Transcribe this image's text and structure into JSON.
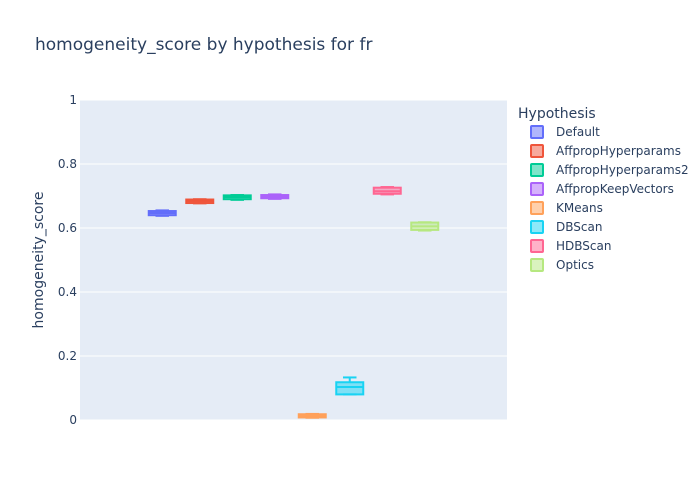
{
  "chart_data": {
    "type": "box",
    "title": "homogeneity_score by hypothesis for fr",
    "ylabel": "homogeneity_score",
    "xlabel": "",
    "ylim": [
      0,
      1
    ],
    "yticks": [
      {
        "value": 0,
        "label": "0"
      },
      {
        "value": 0.2,
        "label": "0.2"
      },
      {
        "value": 0.4,
        "label": "0.4"
      },
      {
        "value": 0.6,
        "label": "0.6"
      },
      {
        "value": 0.8,
        "label": "0.8"
      },
      {
        "value": 1,
        "label": "1"
      }
    ],
    "grid": true,
    "legend": {
      "title": "Hypothesis",
      "placement": "right"
    },
    "series": [
      {
        "name": "Default",
        "color": "#636efa",
        "min": 0.638,
        "q1": 0.64,
        "median": 0.647,
        "q3": 0.653,
        "max": 0.655
      },
      {
        "name": "AffpropHyperparams",
        "color": "#EF553B",
        "min": 0.677,
        "q1": 0.678,
        "median": 0.684,
        "q3": 0.689,
        "max": 0.69
      },
      {
        "name": "AffpropHyperparams2",
        "color": "#00cc96",
        "min": 0.688,
        "q1": 0.69,
        "median": 0.697,
        "q3": 0.702,
        "max": 0.703
      },
      {
        "name": "AffpropKeepVectors",
        "color": "#ab63fa",
        "min": 0.691,
        "q1": 0.693,
        "median": 0.698,
        "q3": 0.703,
        "max": 0.705
      },
      {
        "name": "KMeans",
        "color": "#FFA15A",
        "min": 0.007,
        "q1": 0.008,
        "median": 0.013,
        "q3": 0.018,
        "max": 0.019
      },
      {
        "name": "DBScan",
        "color": "#19d3f3",
        "min": 0.08,
        "q1": 0.08,
        "median": 0.103,
        "q3": 0.118,
        "max": 0.133
      },
      {
        "name": "HDBScan",
        "color": "#FF6692",
        "min": 0.705,
        "q1": 0.707,
        "median": 0.715,
        "q3": 0.726,
        "max": 0.728
      },
      {
        "name": "Optics",
        "color": "#B6E880",
        "min": 0.592,
        "q1": 0.594,
        "median": 0.605,
        "q3": 0.617,
        "max": 0.618
      }
    ]
  }
}
